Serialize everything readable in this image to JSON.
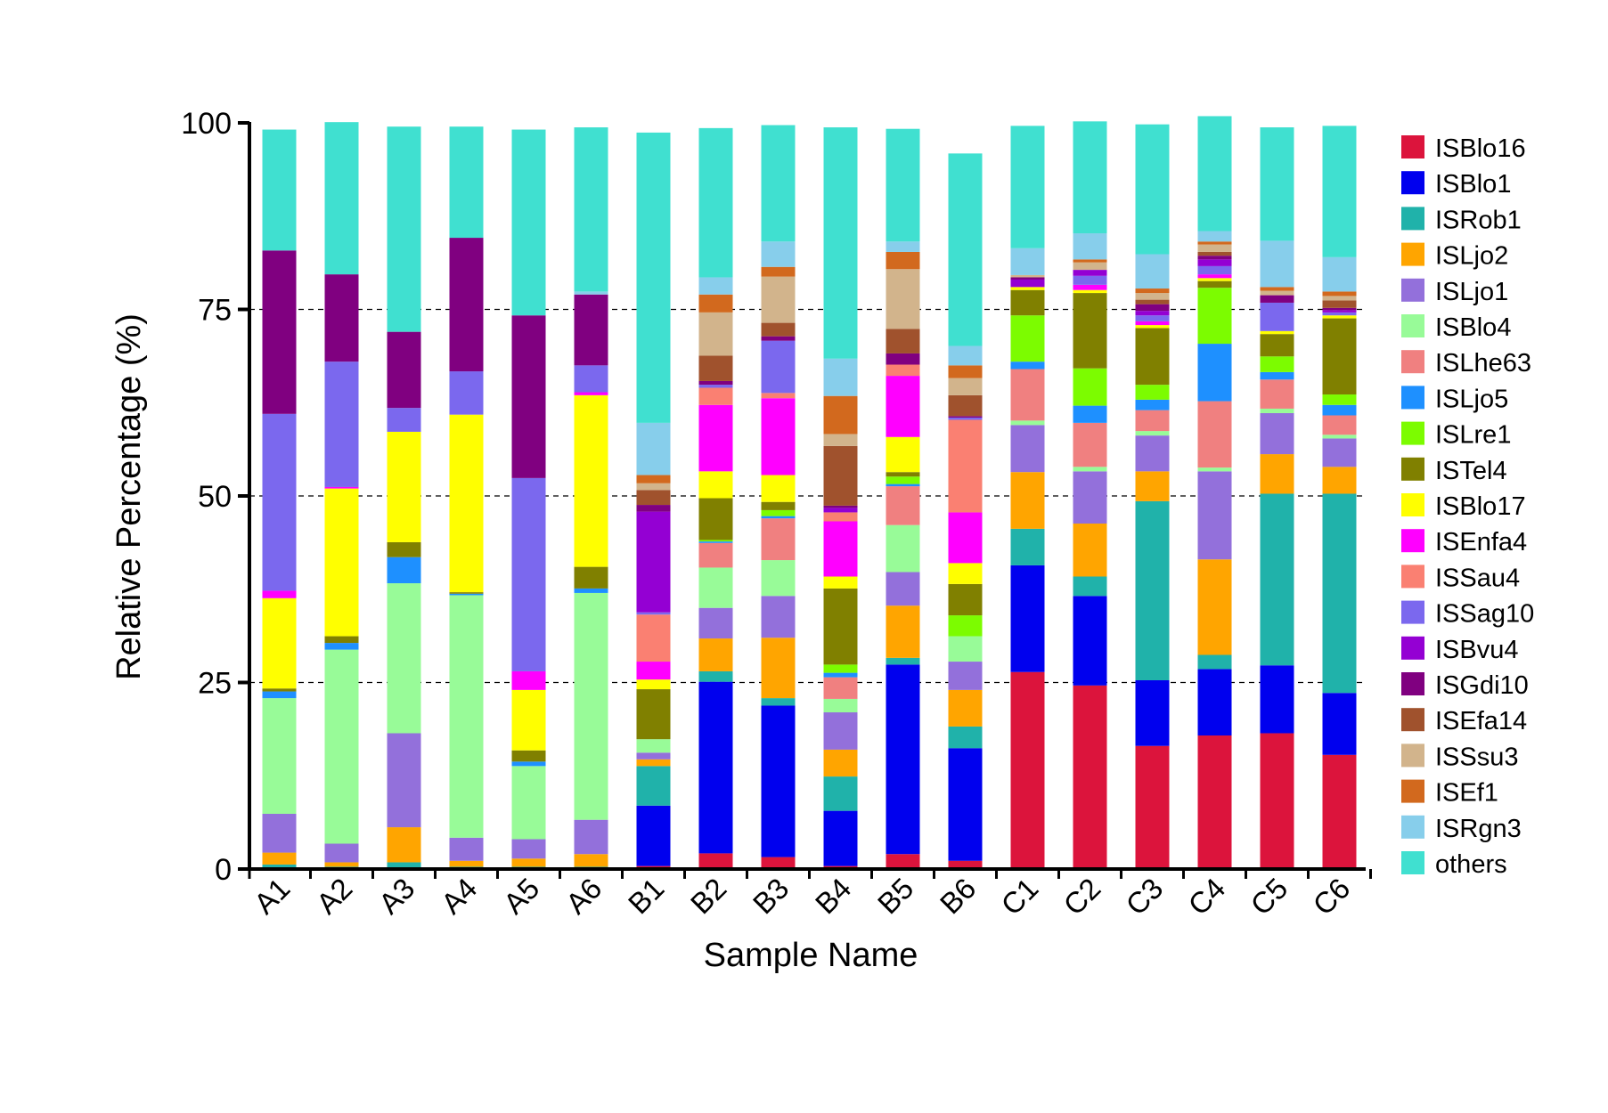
{
  "chart_data": {
    "type": "bar",
    "stacked": true,
    "title": "",
    "xlabel": "Sample Name",
    "ylabel": "Relative Percentage (%)",
    "ylim": [
      0,
      100
    ],
    "yticks": [
      0,
      25,
      50,
      75,
      100
    ],
    "grid": "dashed horizontal at 25, 50, 75",
    "legend_position": "right",
    "categories": [
      "A1",
      "A2",
      "A3",
      "A4",
      "A5",
      "A6",
      "B1",
      "B2",
      "B3",
      "B4",
      "B5",
      "B6",
      "C1",
      "C2",
      "C3",
      "C4",
      "C5",
      "C6"
    ],
    "series": [
      {
        "name": "ISBlo16",
        "color": "#DC143C",
        "values": [
          0.1,
          0.1,
          0.1,
          0.1,
          0.1,
          0.1,
          0.4,
          2.1,
          1.6,
          0.4,
          2.0,
          1.1,
          26.4,
          24.6,
          16.5,
          17.9,
          18.2,
          15.3
        ]
      },
      {
        "name": "ISBlo1",
        "color": "#0000EE",
        "values": [
          0.1,
          0.1,
          0.1,
          0.1,
          0.1,
          0.1,
          8.1,
          23.0,
          20.3,
          7.4,
          25.4,
          15.1,
          14.3,
          12.0,
          8.8,
          8.9,
          9.1,
          8.3
        ]
      },
      {
        "name": "ISRob1",
        "color": "#20B2AA",
        "values": [
          0.4,
          0.1,
          0.7,
          0.1,
          0.1,
          0.1,
          5.3,
          1.4,
          1.0,
          4.6,
          0.9,
          2.9,
          4.9,
          2.6,
          24.0,
          1.9,
          23.0,
          26.7
        ]
      },
      {
        "name": "ISLjo2",
        "color": "#FFA500",
        "values": [
          1.6,
          0.6,
          4.7,
          0.8,
          1.1,
          1.7,
          0.9,
          4.4,
          8.1,
          3.6,
          7.0,
          4.9,
          7.6,
          7.1,
          4.0,
          12.8,
          5.3,
          3.6
        ]
      },
      {
        "name": "ISLjo1",
        "color": "#9370DB",
        "values": [
          5.2,
          2.5,
          12.6,
          3.1,
          2.6,
          4.6,
          0.9,
          4.1,
          5.6,
          5.0,
          4.5,
          3.8,
          6.3,
          7.0,
          4.8,
          11.8,
          5.5,
          3.8
        ]
      },
      {
        "name": "ISBlo4",
        "color": "#98FB98",
        "values": [
          15.5,
          26.0,
          20.1,
          32.5,
          9.8,
          30.4,
          1.8,
          5.4,
          4.8,
          1.8,
          6.3,
          3.4,
          0.6,
          0.6,
          0.6,
          0.5,
          0.6,
          0.5
        ]
      },
      {
        "name": "ISLhe63",
        "color": "#F08080",
        "values": [
          0,
          0,
          0,
          0,
          0,
          0,
          0,
          3.3,
          5.6,
          2.9,
          5.2,
          0,
          6.9,
          5.9,
          2.8,
          8.9,
          3.9,
          2.6
        ]
      },
      {
        "name": "ISLjo5",
        "color": "#1E90FF",
        "values": [
          0.9,
          0.9,
          3.5,
          0.2,
          0.6,
          0.6,
          0,
          0.2,
          0.3,
          0.6,
          0.3,
          0,
          1.0,
          2.3,
          1.4,
          7.7,
          1.0,
          1.4
        ]
      },
      {
        "name": "ISLre1",
        "color": "#7CFC00",
        "values": [
          0,
          0,
          0,
          0,
          0,
          0,
          0,
          0.2,
          0.8,
          1.1,
          1.0,
          2.8,
          6.2,
          5.0,
          2.0,
          7.5,
          2.1,
          1.4
        ]
      },
      {
        "name": "ISTel4",
        "color": "#808000",
        "values": [
          0.4,
          0.9,
          2.0,
          0.2,
          1.5,
          2.9,
          6.7,
          5.6,
          1.1,
          10.2,
          0.6,
          4.2,
          3.4,
          10.1,
          7.6,
          0.9,
          3.0,
          10.2
        ]
      },
      {
        "name": "ISBlo17",
        "color": "#FFFF00",
        "values": [
          12.1,
          19.8,
          14.8,
          23.8,
          8.1,
          23.0,
          1.3,
          3.6,
          3.6,
          1.6,
          4.7,
          2.8,
          0.4,
          0.4,
          0.4,
          0.4,
          0.4,
          0.4
        ]
      },
      {
        "name": "ISEnfa4",
        "color": "#FF00FF",
        "values": [
          1.0,
          0.2,
          0,
          0,
          2.5,
          0.4,
          2.4,
          8.9,
          10.3,
          7.4,
          8.2,
          6.8,
          0,
          0.7,
          0.5,
          0.5,
          0,
          0
        ]
      },
      {
        "name": "ISSau4",
        "color": "#FA8072",
        "values": [
          0,
          0,
          0,
          0,
          0,
          0,
          6.3,
          2.3,
          0.7,
          1.2,
          1.5,
          12.4,
          0,
          0,
          0,
          0,
          0,
          0
        ]
      },
      {
        "name": "ISSag10",
        "color": "#7B68EE",
        "values": [
          23.7,
          16.8,
          3.2,
          5.8,
          25.9,
          3.6,
          0.3,
          0.4,
          7.0,
          0,
          0,
          0.3,
          0,
          1.2,
          0.8,
          1.1,
          3.8,
          0.4
        ]
      },
      {
        "name": "ISBvu4",
        "color": "#9400D3",
        "values": [
          0,
          0,
          0,
          0,
          0,
          0,
          13.5,
          0,
          0,
          0.6,
          0,
          0,
          1.0,
          0.8,
          0.6,
          0.9,
          0,
          0.3
        ]
      },
      {
        "name": "ISGdi10",
        "color": "#800080",
        "values": [
          21.9,
          11.7,
          10.2,
          17.9,
          21.8,
          9.5,
          0.9,
          0.5,
          0.6,
          0.3,
          1.5,
          0.2,
          0.3,
          0,
          0.9,
          0.5,
          1.0,
          0.3
        ]
      },
      {
        "name": "ISEfa14",
        "color": "#A0522D",
        "values": [
          0,
          0,
          0,
          0,
          0,
          0,
          2.0,
          3.4,
          1.8,
          8.0,
          3.3,
          2.8,
          0,
          0,
          0.6,
          0.5,
          0,
          1.0
        ]
      },
      {
        "name": "ISSsu3",
        "color": "#D2B48C",
        "values": [
          0,
          0,
          0,
          0,
          0,
          0,
          0.9,
          5.8,
          6.2,
          1.6,
          8.0,
          2.3,
          0.3,
          1.0,
          0.9,
          1.0,
          0.6,
          0.6
        ]
      },
      {
        "name": "ISEf1",
        "color": "#D2691E",
        "values": [
          0,
          0,
          0,
          0,
          0,
          0,
          1.1,
          2.4,
          1.3,
          5.1,
          2.3,
          1.7,
          0,
          0.4,
          0.6,
          0.4,
          0.5,
          0.6
        ]
      },
      {
        "name": "ISRgn3",
        "color": "#87CEEB",
        "values": [
          0,
          0,
          0,
          0,
          0,
          0.4,
          7.0,
          2.3,
          3.4,
          5.0,
          1.4,
          2.6,
          3.6,
          3.5,
          4.6,
          1.4,
          6.2,
          4.6
        ]
      },
      {
        "name": "others",
        "color": "#40E0D0",
        "values": [
          16.2,
          20.4,
          27.5,
          14.9,
          24.9,
          22.0,
          38.9,
          20.0,
          15.6,
          31.0,
          15.1,
          25.8,
          16.4,
          15.0,
          17.4,
          15.4,
          15.2,
          17.6
        ]
      }
    ]
  }
}
